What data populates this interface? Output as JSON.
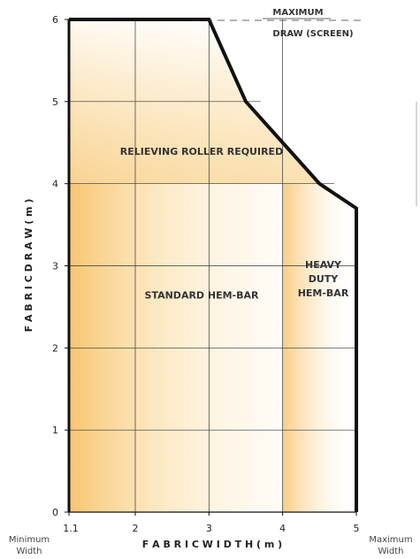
{
  "chart_data": {
    "type": "area",
    "title": "",
    "xlabel": "F A B R I C   W I D T H   ( m )",
    "ylabel": "F A B R I C   D R A W   ( m )",
    "xlim": [
      1.1,
      5
    ],
    "ylim": [
      0,
      6
    ],
    "x_ticks": [
      {
        "value": 1.1,
        "label": "1.1"
      },
      {
        "value": 2,
        "label": "2"
      },
      {
        "value": 3,
        "label": "3"
      },
      {
        "value": 4,
        "label": "4"
      },
      {
        "value": 5,
        "label": "5"
      }
    ],
    "y_ticks": [
      {
        "value": 0,
        "label": "0"
      },
      {
        "value": 1,
        "label": "1"
      },
      {
        "value": 2,
        "label": "2"
      },
      {
        "value": 3,
        "label": "3"
      },
      {
        "value": 4,
        "label": "4"
      },
      {
        "value": 5,
        "label": "5"
      },
      {
        "value": 6,
        "label": "6"
      }
    ],
    "boundary": [
      {
        "x": 1.1,
        "y": 6
      },
      {
        "x": 3,
        "y": 6
      },
      {
        "x": 3.5,
        "y": 5
      },
      {
        "x": 4,
        "y": 4.5
      },
      {
        "x": 4.5,
        "y": 4
      },
      {
        "x": 5,
        "y": 3.7
      },
      {
        "x": 5,
        "y": 0
      }
    ],
    "grid": true,
    "region_labels": [
      {
        "name": "relieving-roller-label",
        "lines": [
          "RELIEVING ROLLER REQUIRED"
        ],
        "x": 2.9,
        "y": 4.35
      },
      {
        "name": "standard-hem-bar-label",
        "lines": [
          "STANDARD HEM-BAR"
        ],
        "x": 2.9,
        "y": 2.6
      },
      {
        "name": "heavy-duty-hem-bar-label",
        "lines": [
          "HEAVY",
          "DUTY",
          "HEM-BAR"
        ],
        "x": 4.55,
        "y": 2.8
      }
    ],
    "max_draw_label": [
      "MAXIMUM",
      "DRAW (SCREEN)"
    ],
    "min_width_label": [
      "Minimum",
      "Width"
    ],
    "max_width_label": [
      "Maximum",
      "Width"
    ],
    "colors": {
      "boundary": "#111111",
      "grid": "#333333",
      "fill_warm": "#f7c36a",
      "fill_light": "#fbe3b4"
    }
  }
}
